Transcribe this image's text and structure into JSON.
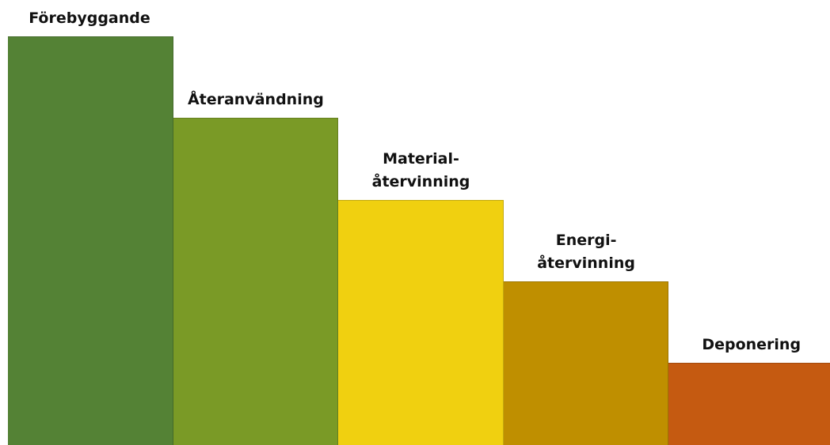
{
  "diagram": {
    "steps": [
      {
        "label_lines": [
          "Förebyggande"
        ],
        "color": "#548235",
        "level": 5
      },
      {
        "label_lines": [
          "Återanvändning"
        ],
        "color": "#7a9a26",
        "level": 4
      },
      {
        "label_lines": [
          "Material-",
          "återvinning"
        ],
        "color": "#f0d010",
        "level": 3
      },
      {
        "label_lines": [
          "Energi-",
          "återvinning"
        ],
        "color": "#bf8f00",
        "level": 2
      },
      {
        "label_lines": [
          "Deponering"
        ],
        "color": "#c55a11",
        "level": 1
      }
    ]
  }
}
